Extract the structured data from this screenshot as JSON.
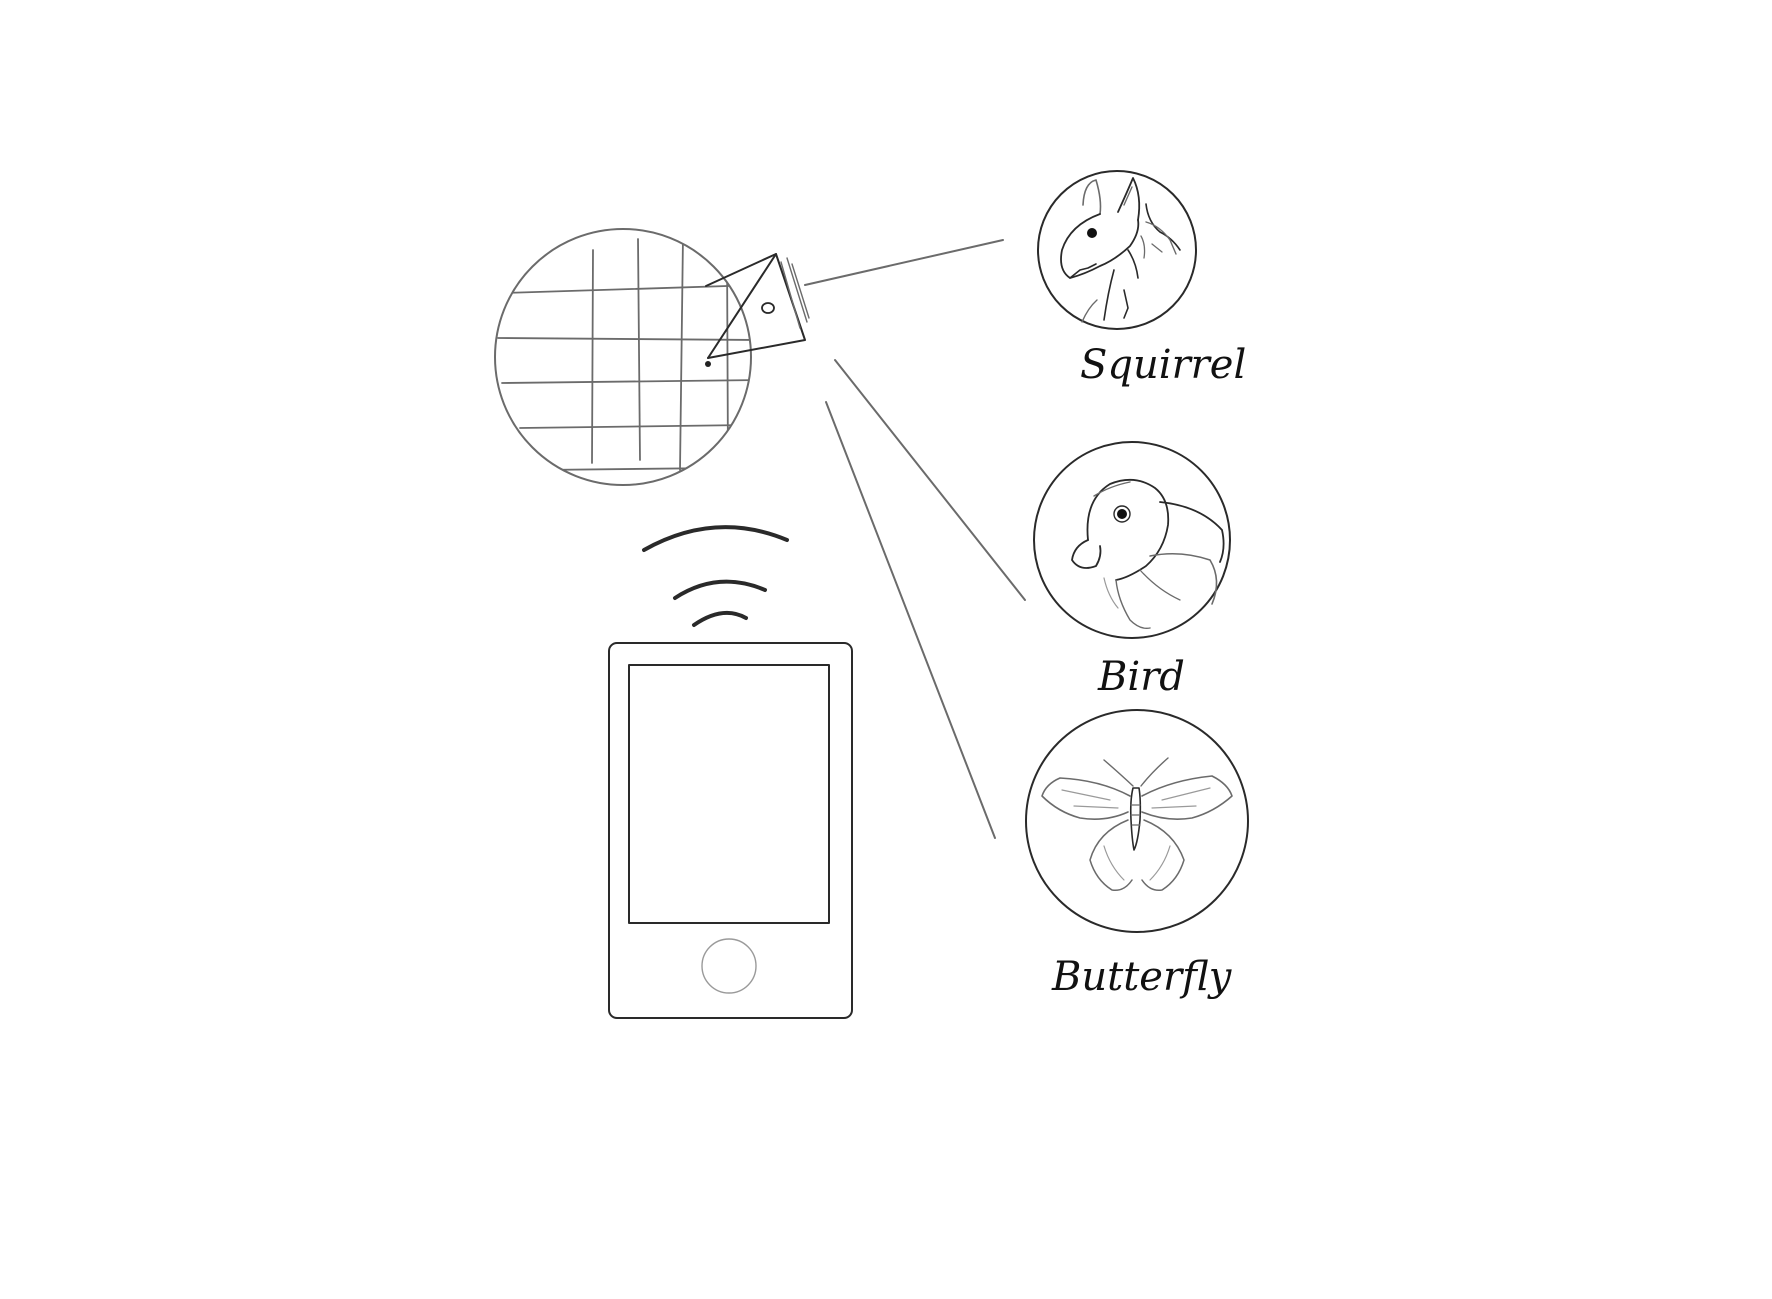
{
  "labels": {
    "squirrel": "Squirrel",
    "bird": "Bird",
    "butterfly": "Butterfly"
  },
  "colors": {
    "ink": "#111111",
    "pencil": "#2a2a2a",
    "pencil_light": "#6b6b6b",
    "background": "#ffffff"
  },
  "icons": {
    "map": "map-grid-icon",
    "signal": "wireless-signal-icon",
    "device": "tablet-device-icon",
    "squirrel": "squirrel-icon",
    "bird": "bird-icon",
    "butterfly": "butterfly-icon"
  }
}
